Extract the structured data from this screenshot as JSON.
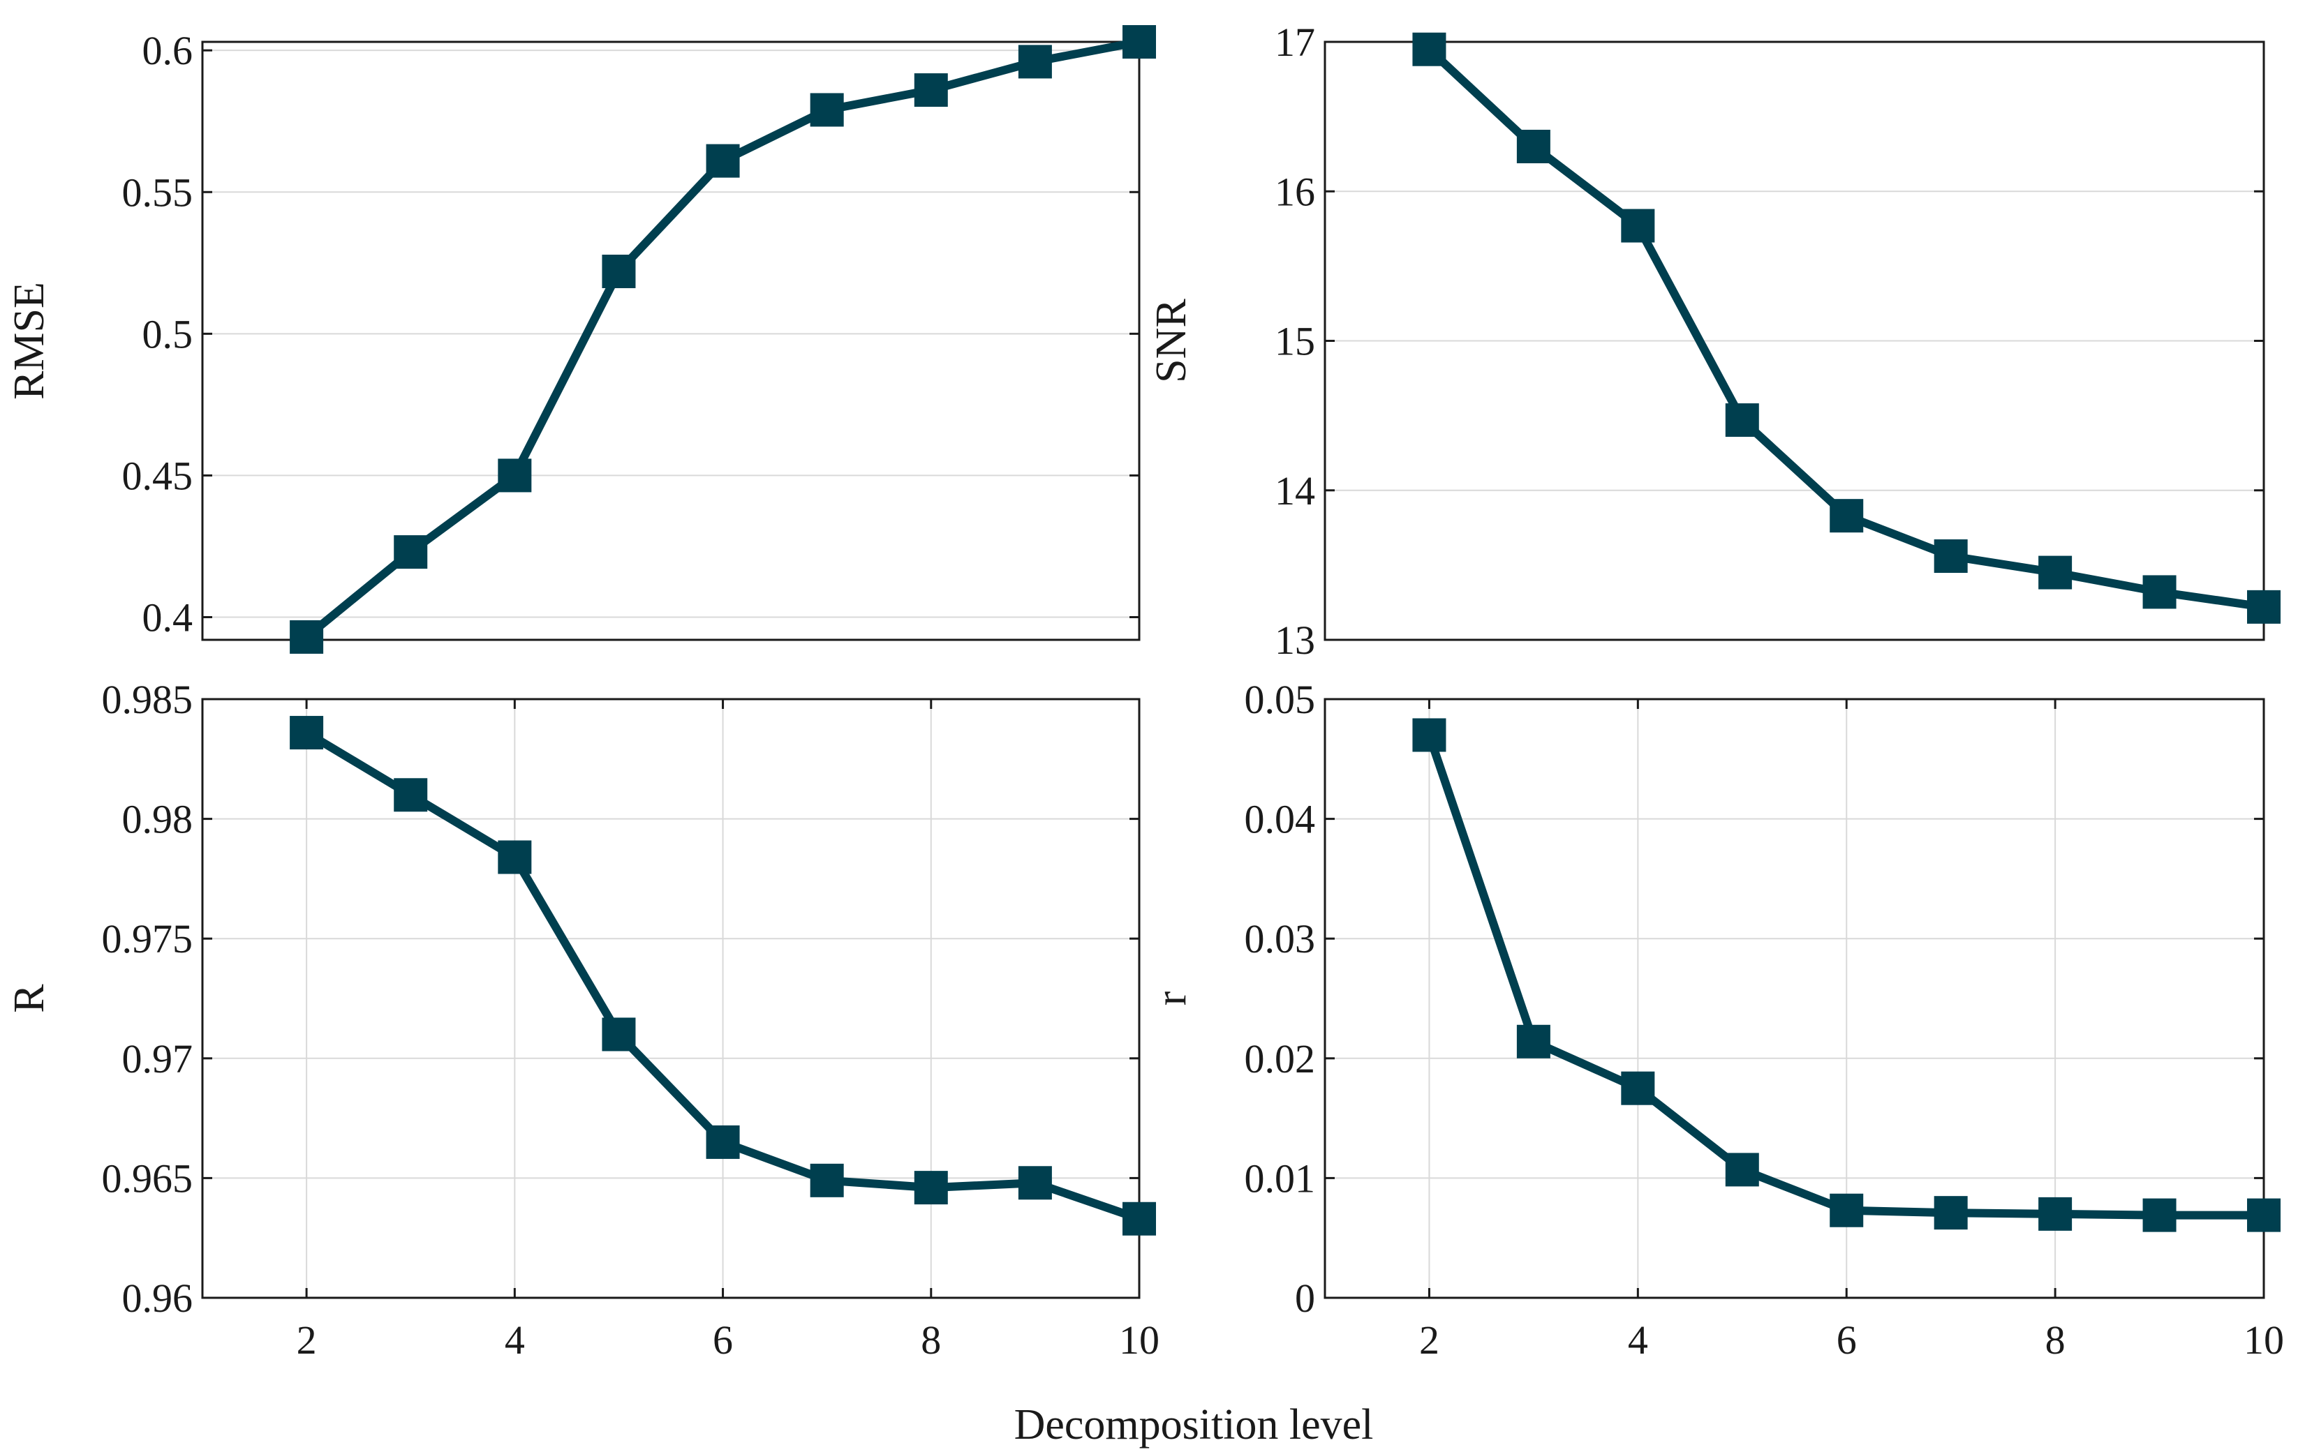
{
  "figure": {
    "xlabel": "Decomposition level",
    "series_color": "#003f4f"
  },
  "chart_data": [
    {
      "id": "rmse",
      "type": "line",
      "title": "",
      "ylabel": "RMSE",
      "xlabel": "",
      "x": [
        2,
        3,
        4,
        5,
        6,
        7,
        8,
        9,
        10
      ],
      "values": [
        0.393,
        0.423,
        0.45,
        0.522,
        0.561,
        0.579,
        0.586,
        0.596,
        0.603
      ],
      "xlim": [
        1,
        10
      ],
      "ylim": [
        0.392,
        0.603
      ],
      "yticks": [
        0.4,
        0.45,
        0.5,
        0.55,
        0.6
      ],
      "yticklabels": [
        "0.4",
        "0.45",
        "0.5",
        "0.55",
        "0.6"
      ],
      "xticks": [],
      "xticklabels": [],
      "grid_y": true,
      "grid_x": false,
      "marker": "square"
    },
    {
      "id": "snr",
      "type": "line",
      "title": "",
      "ylabel": "SNR",
      "xlabel": "",
      "x": [
        2,
        3,
        4,
        5,
        6,
        7,
        8,
        9,
        10
      ],
      "values": [
        16.95,
        16.3,
        15.77,
        14.47,
        13.83,
        13.56,
        13.45,
        13.32,
        13.22
      ],
      "xlim": [
        1,
        10
      ],
      "ylim": [
        13,
        17
      ],
      "yticks": [
        13,
        14,
        15,
        16,
        17
      ],
      "yticklabels": [
        "13",
        "14",
        "15",
        "16",
        "17"
      ],
      "xticks": [],
      "xticklabels": [],
      "grid_y": true,
      "grid_x": false,
      "marker": "square"
    },
    {
      "id": "R",
      "type": "line",
      "title": "",
      "ylabel": "R",
      "xlabel": "",
      "x": [
        2,
        3,
        4,
        5,
        6,
        7,
        8,
        9,
        10
      ],
      "values": [
        0.9836,
        0.981,
        0.9784,
        0.971,
        0.9665,
        0.9649,
        0.9646,
        0.9648,
        0.9633
      ],
      "xlim": [
        1,
        10
      ],
      "ylim": [
        0.96,
        0.985
      ],
      "yticks": [
        0.96,
        0.965,
        0.97,
        0.975,
        0.98,
        0.985
      ],
      "yticklabels": [
        "0.96",
        "0.965",
        "0.97",
        "0.975",
        "0.98",
        "0.985"
      ],
      "xticks": [
        2,
        4,
        6,
        8,
        10
      ],
      "xticklabels": [
        "2",
        "4",
        "6",
        "8",
        "10"
      ],
      "grid_y": true,
      "grid_x": true,
      "marker": "square"
    },
    {
      "id": "r",
      "type": "line",
      "title": "",
      "ylabel": "r",
      "xlabel": "",
      "x": [
        2,
        3,
        4,
        5,
        6,
        7,
        8,
        9,
        10
      ],
      "values": [
        0.047,
        0.0214,
        0.0175,
        0.0107,
        0.0073,
        0.0071,
        0.007,
        0.0069,
        0.0069
      ],
      "xlim": [
        1,
        10
      ],
      "ylim": [
        0,
        0.05
      ],
      "yticks": [
        0,
        0.01,
        0.02,
        0.03,
        0.04,
        0.05
      ],
      "yticklabels": [
        "0",
        "0.01",
        "0.02",
        "0.03",
        "0.04",
        "0.05"
      ],
      "xticks": [
        2,
        4,
        6,
        8,
        10
      ],
      "xticklabels": [
        "2",
        "4",
        "6",
        "8",
        "10"
      ],
      "grid_y": true,
      "grid_x": true,
      "marker": "square"
    }
  ]
}
